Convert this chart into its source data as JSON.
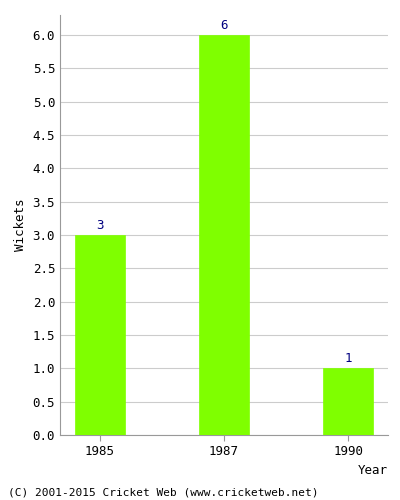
{
  "categories": [
    "1985",
    "1987",
    "1990"
  ],
  "values": [
    3,
    6,
    1
  ],
  "bar_color": "#7fff00",
  "bar_edge_color": "#7fff00",
  "value_label_color": "#000080",
  "value_label_fontsize": 9,
  "xlabel": "Year",
  "ylabel": "Wickets",
  "ylim": [
    0,
    6.3
  ],
  "yticks": [
    0.0,
    0.5,
    1.0,
    1.5,
    2.0,
    2.5,
    3.0,
    3.5,
    4.0,
    4.5,
    5.0,
    5.5,
    6.0
  ],
  "title": "",
  "footer": "(C) 2001-2015 Cricket Web (www.cricketweb.net)",
  "footer_fontsize": 8,
  "background_color": "#ffffff",
  "plot_background_color": "#ffffff",
  "grid_color": "#cccccc",
  "bar_width": 0.4,
  "xlabel_fontsize": 9,
  "ylabel_fontsize": 9,
  "tick_fontsize": 9
}
